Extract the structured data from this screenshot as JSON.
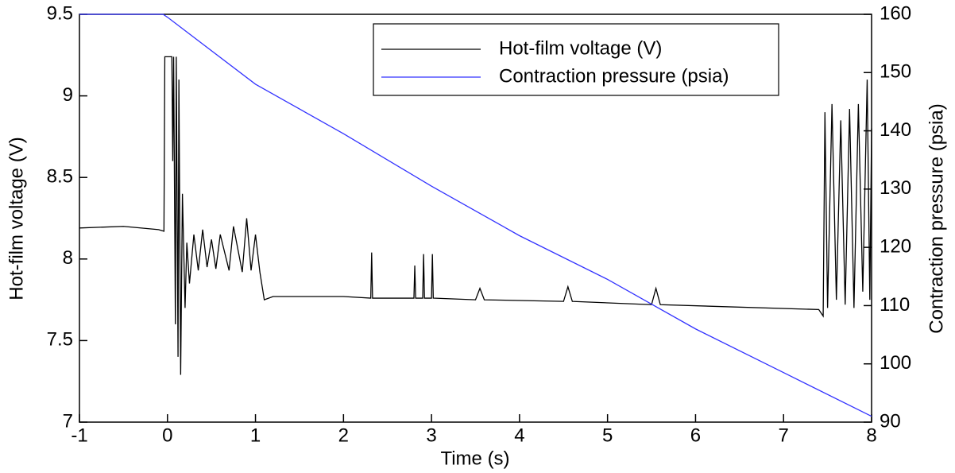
{
  "chart_data": {
    "type": "line",
    "x_label": "Time (s)",
    "y_label": "Hot-film voltage (V)",
    "y2_label": "Contraction pressure (psia)",
    "xlim": [
      -1,
      8
    ],
    "xticks": [
      -1,
      0,
      1,
      2,
      3,
      4,
      5,
      6,
      7,
      8
    ],
    "ylim": [
      7,
      9.5
    ],
    "yticks": [
      7,
      7.5,
      8,
      8.5,
      9,
      9.5
    ],
    "y2lim": [
      90,
      160
    ],
    "y2ticks": [
      90,
      100,
      110,
      120,
      130,
      140,
      150,
      160
    ],
    "y2_color": "#3333ff",
    "legend": "upper right",
    "series": [
      {
        "name": "Hot-film voltage (V)",
        "color": "#000000",
        "x": [
          -1,
          -0.5,
          -0.1,
          -0.04,
          -0.03,
          0.05,
          0.06,
          0.07,
          0.09,
          0.1,
          0.12,
          0.13,
          0.15,
          0.17,
          0.2,
          0.22,
          0.25,
          0.3,
          0.35,
          0.4,
          0.45,
          0.5,
          0.55,
          0.6,
          0.7,
          0.75,
          0.85,
          0.9,
          0.95,
          1.0,
          1.05,
          1.1,
          1.2,
          2.0,
          2.31,
          2.32,
          2.33,
          2.8,
          2.81,
          2.82,
          2.9,
          2.91,
          2.92,
          3.0,
          3.01,
          3.02,
          3.5,
          3.55,
          3.6,
          4.5,
          4.55,
          4.6,
          5.5,
          5.55,
          5.6,
          7.4,
          7.45,
          7.47,
          7.5,
          7.55,
          7.6,
          7.65,
          7.7,
          7.75,
          7.8,
          7.85,
          7.9,
          7.95,
          7.98,
          8.0
        ],
        "values": [
          8.19,
          8.2,
          8.18,
          8.17,
          9.24,
          9.24,
          8.6,
          9.24,
          7.6,
          9.24,
          7.4,
          9.1,
          7.29,
          8.4,
          7.7,
          8.1,
          7.85,
          8.15,
          7.93,
          8.18,
          7.95,
          8.12,
          7.94,
          8.15,
          7.93,
          8.2,
          7.92,
          8.25,
          7.93,
          8.15,
          7.92,
          7.75,
          7.77,
          7.77,
          7.76,
          8.04,
          7.76,
          7.76,
          7.96,
          7.76,
          7.76,
          8.03,
          7.76,
          7.76,
          8.03,
          7.76,
          7.75,
          7.82,
          7.75,
          7.74,
          7.83,
          7.74,
          7.72,
          7.82,
          7.72,
          7.69,
          7.65,
          8.9,
          7.7,
          8.95,
          7.75,
          8.85,
          7.72,
          8.92,
          7.7,
          8.95,
          7.8,
          9.1,
          7.75,
          8.8
        ]
      },
      {
        "name": "Contraction pressure (psia)",
        "color": "#3333ff",
        "axis": "y2",
        "x": [
          -1,
          -0.05,
          0,
          1,
          2,
          3,
          4,
          5,
          6,
          7,
          8
        ],
        "values": [
          160,
          160,
          159.5,
          148,
          139.5,
          130.5,
          122,
          114.5,
          106,
          98.5,
          91
        ]
      }
    ]
  }
}
